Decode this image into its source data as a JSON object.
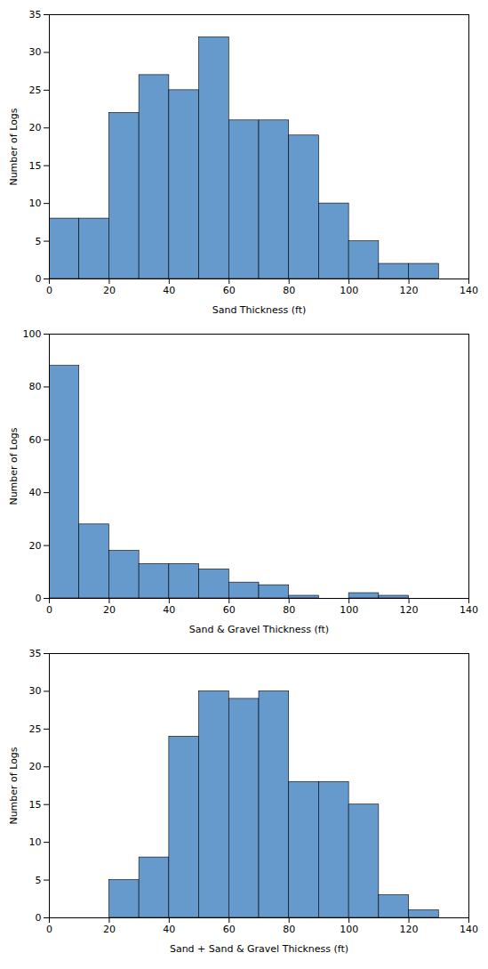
{
  "chart_data": [
    {
      "type": "histogram",
      "xlabel": "Sand Thickness (ft)",
      "ylabel": "Number of Logs",
      "bins": [
        0,
        10,
        20,
        30,
        40,
        50,
        60,
        70,
        80,
        90,
        100,
        110,
        120,
        130
      ],
      "values": [
        8,
        8,
        22,
        27,
        25,
        32,
        21,
        21,
        19,
        10,
        5,
        2,
        2
      ],
      "color": "#6699CC",
      "grid": false,
      "xlim": [
        0,
        140
      ],
      "xticks": [
        0,
        20,
        40,
        60,
        80,
        100,
        120,
        140
      ],
      "ylim": [
        0,
        35
      ],
      "yticks": [
        0,
        5,
        10,
        15,
        20,
        25,
        30,
        35
      ]
    },
    {
      "type": "histogram",
      "xlabel": "Sand & Gravel Thickness (ft)",
      "ylabel": "Number of Logs",
      "bins": [
        0,
        10,
        20,
        30,
        40,
        50,
        60,
        70,
        80,
        90,
        100,
        110,
        120,
        130
      ],
      "values": [
        88,
        28,
        18,
        13,
        13,
        11,
        6,
        5,
        1,
        0,
        2,
        1,
        0
      ],
      "color": "#6699CC",
      "grid": false,
      "xlim": [
        0,
        140
      ],
      "xticks": [
        0,
        20,
        40,
        60,
        80,
        100,
        120,
        140
      ],
      "ylim": [
        0,
        100
      ],
      "yticks": [
        0,
        20,
        40,
        60,
        80,
        100
      ]
    },
    {
      "type": "histogram",
      "xlabel": "Sand + Sand & Gravel Thickness (ft)",
      "ylabel": "Number of Logs",
      "bins": [
        20,
        30,
        40,
        50,
        60,
        70,
        80,
        90,
        100,
        110,
        120,
        130
      ],
      "values": [
        5,
        8,
        24,
        30,
        29,
        30,
        18,
        18,
        15,
        3,
        1
      ],
      "color": "#6699CC",
      "grid": false,
      "xlim": [
        0,
        140
      ],
      "xticks": [
        0,
        20,
        40,
        60,
        80,
        100,
        120,
        140
      ],
      "ylim": [
        0,
        35
      ],
      "yticks": [
        0,
        5,
        10,
        15,
        20,
        25,
        30,
        35
      ]
    }
  ]
}
